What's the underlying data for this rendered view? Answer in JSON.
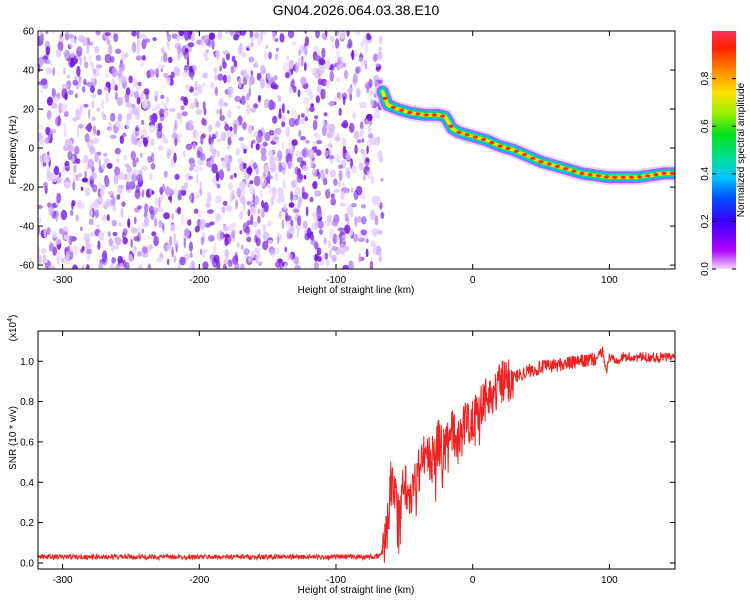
{
  "figure_title": "GN04.2026.064.03.38.E10",
  "colors": {
    "line": "#ee2222",
    "spectrogram_noise": "#7a1ee0",
    "axis": "#000000"
  },
  "chart_data": [
    {
      "type": "heatmap",
      "title": "",
      "xlabel": "Height of straight line (km)",
      "ylabel": "Frequency (Hz)",
      "xlim": [
        -318,
        148
      ],
      "ylim": [
        -62,
        60
      ],
      "x_ticks": [
        -300,
        -200,
        -100,
        0,
        100
      ],
      "x_tick_labels": [
        "-300",
        "-200",
        "-100",
        "0",
        "100"
      ],
      "y_ticks": [
        60,
        40,
        20,
        0,
        -20,
        -40,
        -60
      ],
      "y_tick_labels": [
        "60",
        "40",
        "20",
        "0",
        "-20",
        "-40",
        "-60"
      ],
      "noise_region_x": [
        -318,
        -66
      ],
      "signal_track": {
        "x": [
          -66,
          -62,
          -55,
          -45,
          -35,
          -25,
          -20,
          -15,
          -10,
          0,
          10,
          20,
          30,
          40,
          50,
          60,
          70,
          80,
          90,
          100,
          110,
          120,
          130,
          140,
          148
        ],
        "y": [
          29,
          22,
          20,
          18,
          17,
          17,
          16,
          10,
          8,
          6,
          4,
          1,
          -1,
          -4,
          -7,
          -9,
          -11,
          -13,
          -14,
          -15,
          -15,
          -15,
          -14,
          -13,
          -13
        ]
      },
      "colorbar": {
        "label": "Normalized spectral amplitude",
        "range": [
          0,
          1
        ],
        "ticks": [
          0.0,
          0.2,
          0.4,
          0.6,
          0.8
        ],
        "tick_labels": [
          "0.0",
          "0.2",
          "0.4",
          "0.6",
          "0.8"
        ]
      },
      "grid": false
    },
    {
      "type": "line",
      "title": "",
      "xlabel": "Height of straight line (km)",
      "ylabel": "SNR (10 * v/v)",
      "y_multiplier_label": "(x10",
      "y_multiplier_exp": "4",
      "y_multiplier_close": ")",
      "xlim": [
        -318,
        148
      ],
      "ylim": [
        -0.03,
        1.15
      ],
      "x_ticks": [
        -300,
        -200,
        -100,
        0,
        100
      ],
      "x_tick_labels": [
        "-300",
        "-200",
        "-100",
        "0",
        "100"
      ],
      "y_ticks": [
        0.0,
        0.2,
        0.4,
        0.6,
        0.8,
        1.0
      ],
      "y_tick_labels": [
        "0.0",
        "0.2",
        "0.4",
        "0.6",
        "0.8",
        "1.0"
      ],
      "series": [
        {
          "x": [
            -318,
            -300,
            -250,
            -200,
            -150,
            -100,
            -80,
            -70,
            -66,
            -62,
            -60,
            -55,
            -50,
            -45,
            -40,
            -35,
            -30,
            -25,
            -20,
            -15,
            -10,
            -5,
            0,
            5,
            10,
            15,
            20,
            25,
            30,
            40,
            50,
            60,
            70,
            80,
            90,
            95,
            98,
            100,
            105,
            110,
            120,
            130,
            140,
            148
          ],
          "y": [
            0.03,
            0.03,
            0.03,
            0.03,
            0.03,
            0.03,
            0.03,
            0.03,
            0.05,
            0.2,
            0.45,
            0.25,
            0.4,
            0.35,
            0.45,
            0.55,
            0.5,
            0.6,
            0.55,
            0.65,
            0.6,
            0.7,
            0.72,
            0.78,
            0.82,
            0.85,
            0.88,
            0.9,
            0.92,
            0.95,
            0.97,
            0.98,
            0.99,
            1.0,
            1.01,
            1.05,
            0.95,
            1.02,
            1.01,
            1.02,
            1.02,
            1.02,
            1.02,
            1.02
          ]
        }
      ],
      "grid": false
    }
  ]
}
